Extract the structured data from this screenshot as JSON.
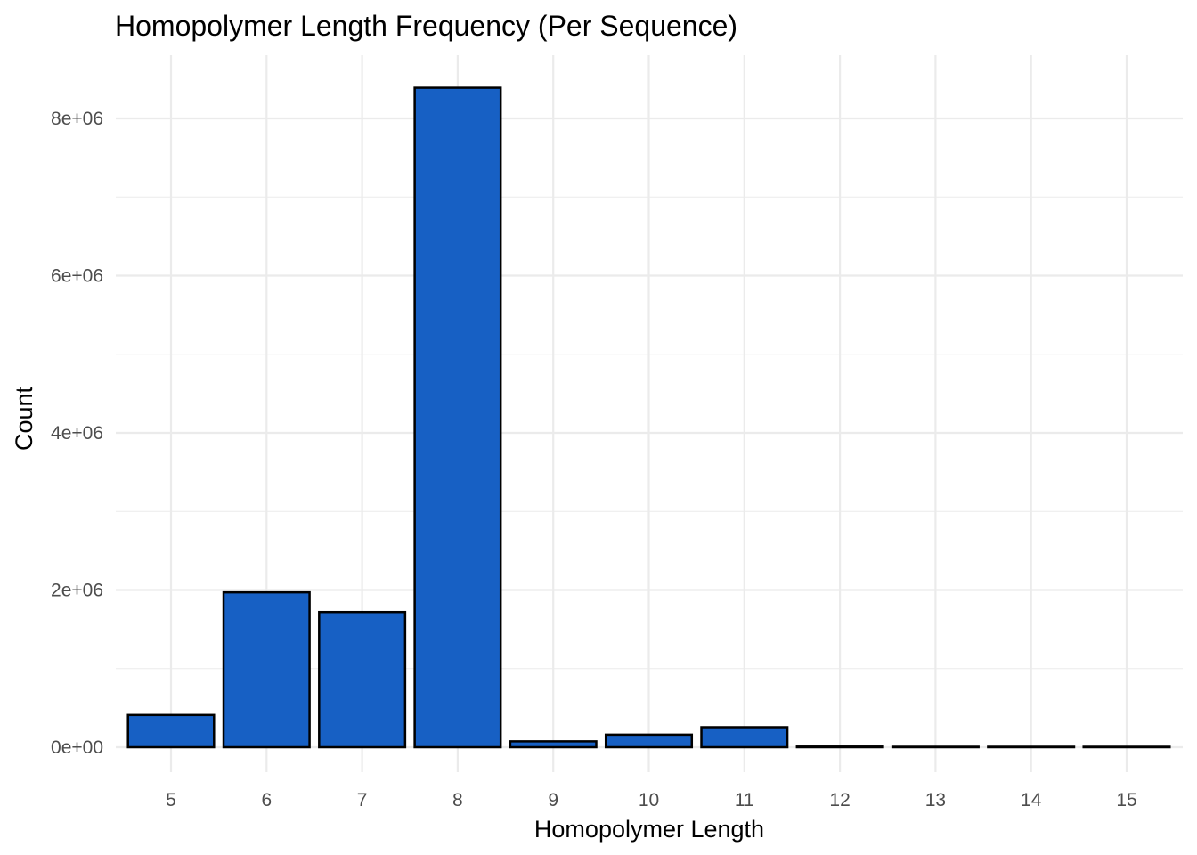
{
  "chart_data": {
    "type": "bar",
    "title": "Homopolymer Length Frequency (Per Sequence)",
    "xlabel": "Homopolymer Length",
    "ylabel": "Count",
    "categories": [
      "5",
      "6",
      "7",
      "8",
      "9",
      "10",
      "11",
      "12",
      "13",
      "14",
      "15"
    ],
    "values": [
      410000,
      1970000,
      1720000,
      8390000,
      75000,
      160000,
      255000,
      8000,
      4000,
      2000,
      1000
    ],
    "ylim": [
      -320000,
      8790000
    ],
    "yticks": [
      0,
      2000000,
      4000000,
      6000000,
      8000000
    ],
    "ytick_labels": [
      "0e+00",
      "2e+06",
      "4e+06",
      "6e+06",
      "8e+06"
    ],
    "grid": true,
    "bar_color": "#1760C4",
    "bar_outline": "#000000"
  }
}
